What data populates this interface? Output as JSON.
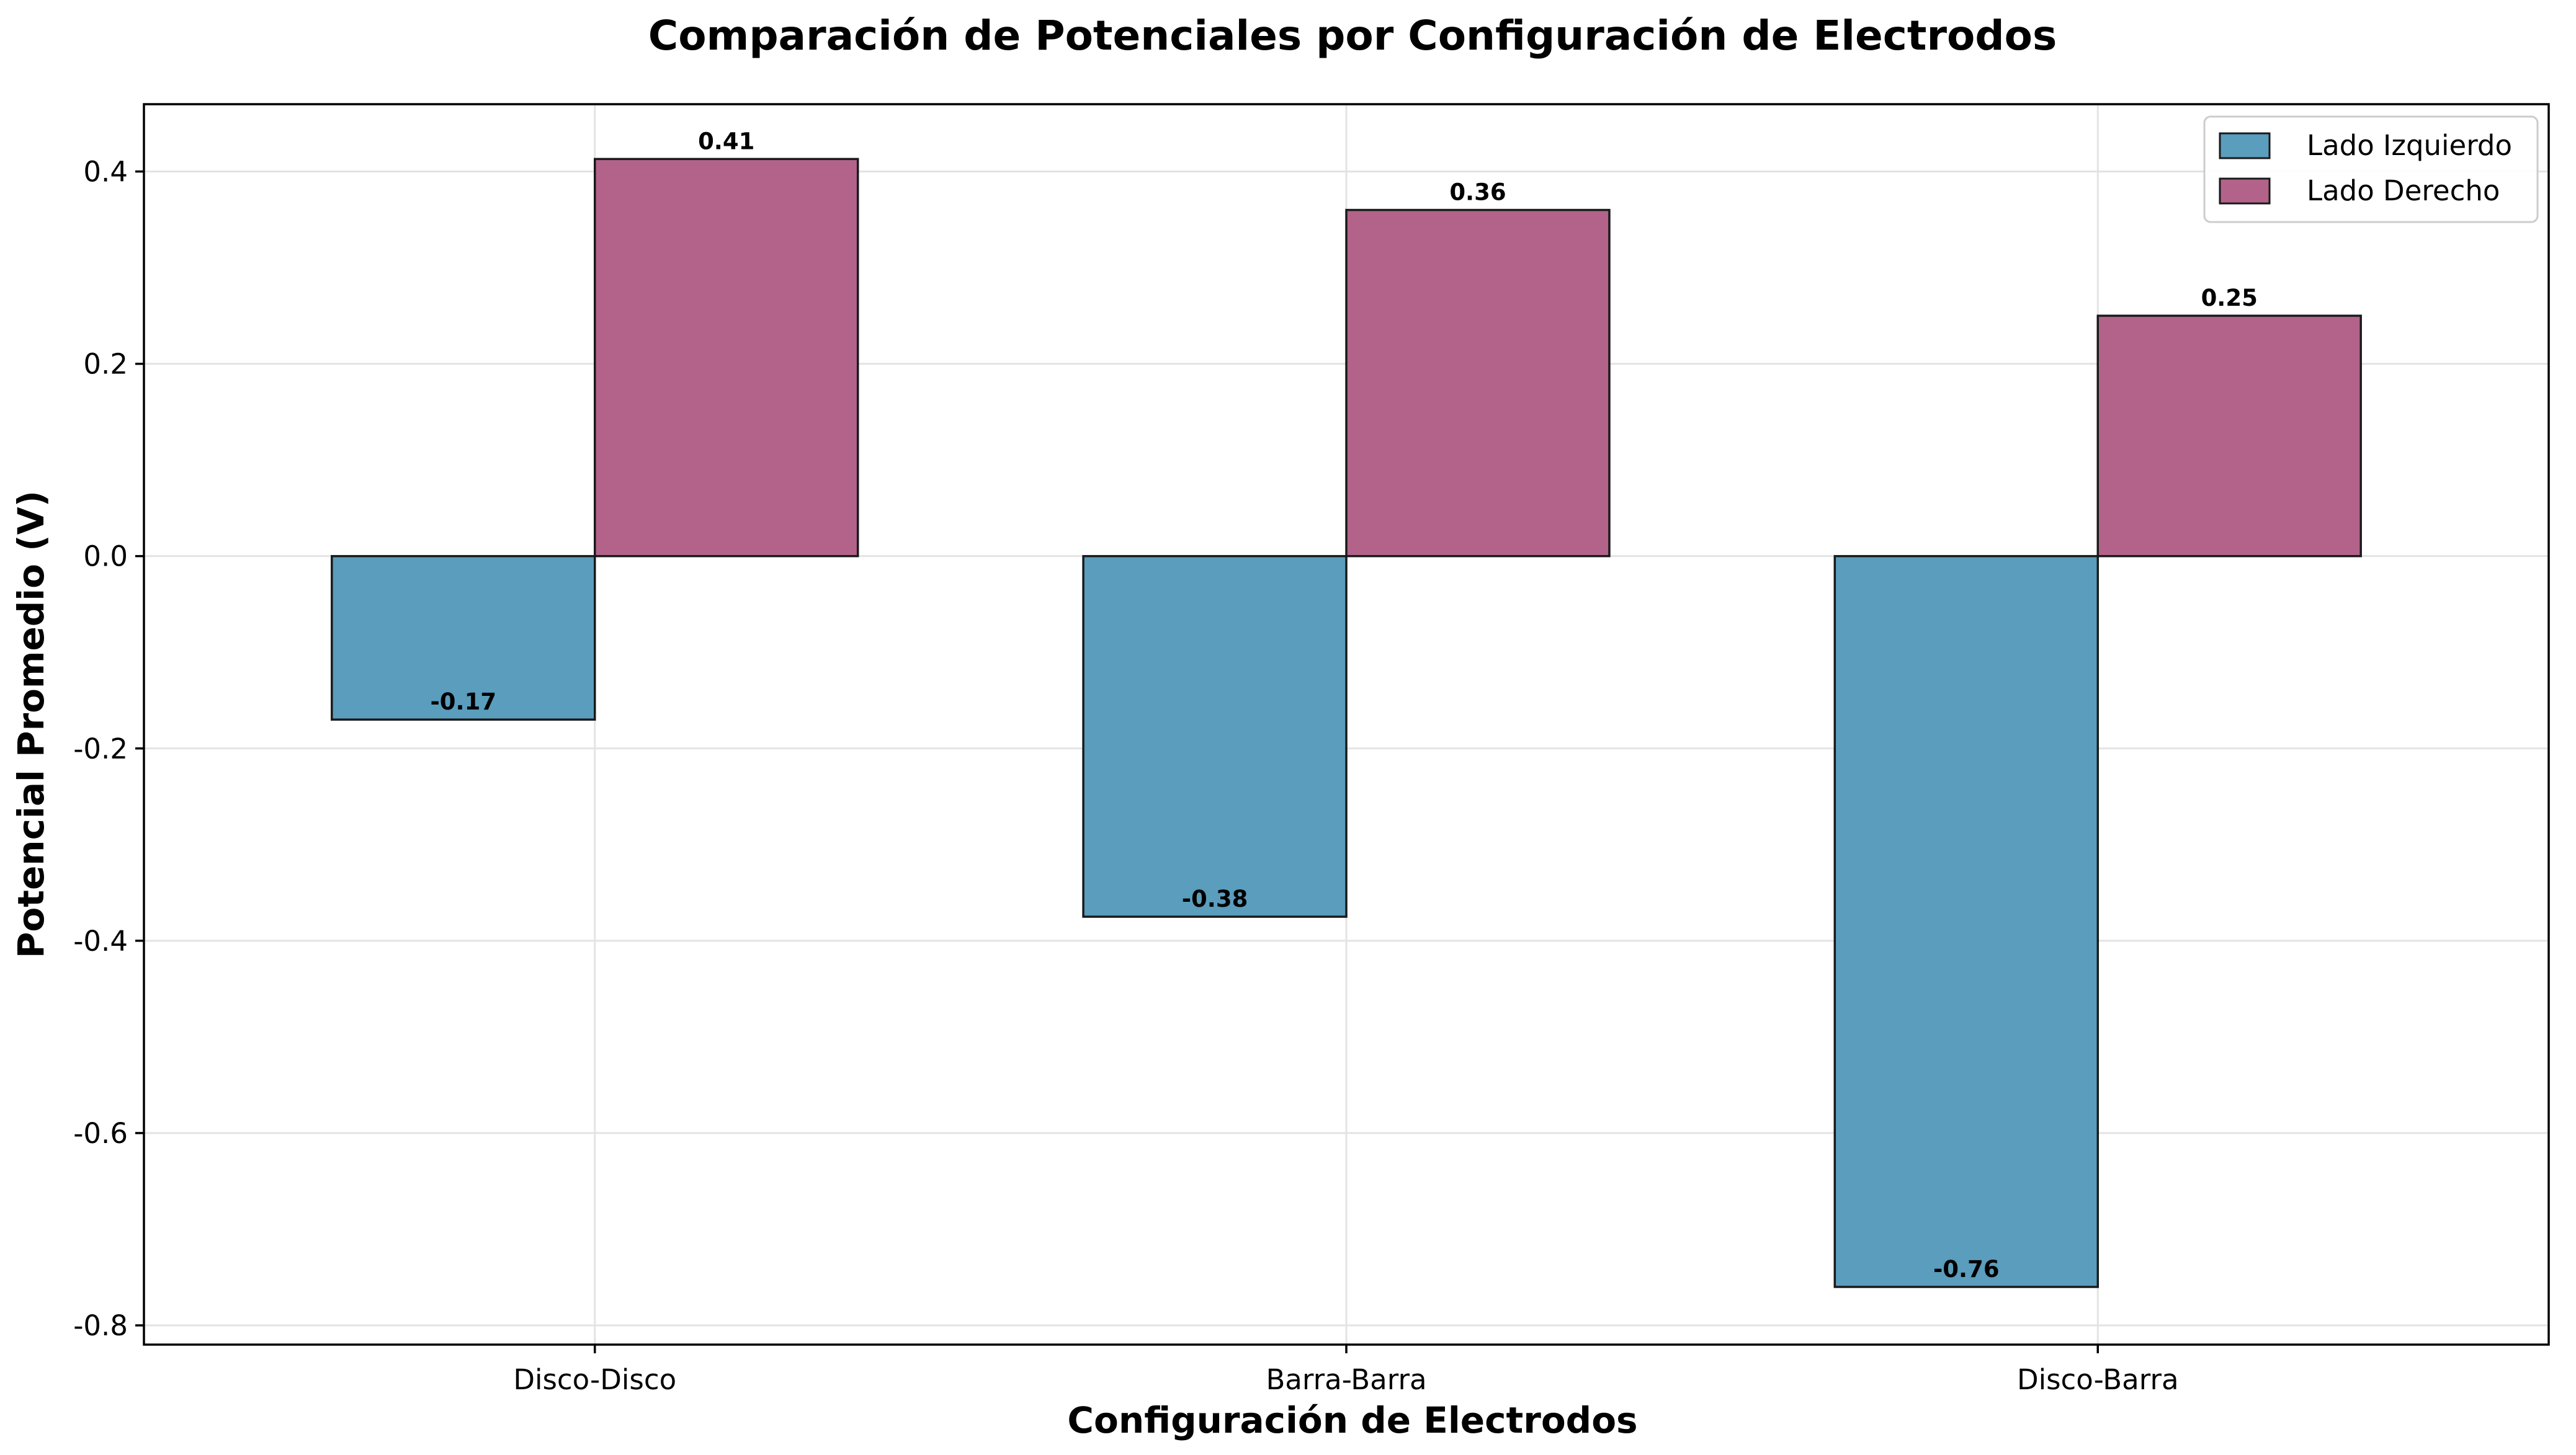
{
  "colors": {
    "left": "#5A9DBD",
    "right": "#B3638A",
    "edge": "#1a1a1a",
    "grid": "#e3e3e3"
  },
  "chart_data": {
    "type": "bar",
    "title": "Comparación de Potenciales por Configuración de Electrodos",
    "xlabel": "Configuración de Electrodos",
    "ylabel": "Potencial Promedio (V)",
    "categories": [
      "Disco-Disco",
      "Barra-Barra",
      "Disco-Barra"
    ],
    "series": [
      {
        "name": "Lado Izquierdo",
        "values": [
          -0.17,
          -0.375,
          -0.76
        ],
        "labels": [
          "-0.17",
          "-0.38",
          "-0.76"
        ]
      },
      {
        "name": "Lado Derecho",
        "values": [
          0.413,
          0.36,
          0.25
        ],
        "labels": [
          "0.41",
          "0.36",
          "0.25"
        ]
      }
    ],
    "ylim": [
      -0.82,
      0.47
    ],
    "yticks": [
      -0.8,
      -0.6,
      -0.4,
      -0.2,
      0.0,
      0.2,
      0.4
    ],
    "ytick_labels": [
      "-0.8",
      "-0.6",
      "-0.4",
      "-0.2",
      "0.0",
      "0.2",
      "0.4"
    ],
    "grid": true,
    "legend_position": "top-right"
  }
}
